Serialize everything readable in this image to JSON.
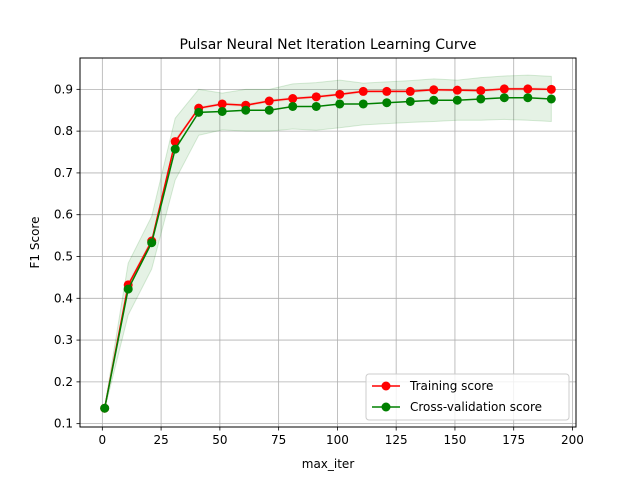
{
  "chart_data": {
    "type": "line",
    "title": "Pulsar Neural Net Iteration Learning Curve",
    "xlabel": "max_iter",
    "ylabel": "F1 Score",
    "xlim": [
      -9.5,
      201.5
    ],
    "ylim": [
      0.092,
      0.975
    ],
    "xticks": [
      0,
      25,
      50,
      75,
      100,
      125,
      150,
      175,
      200
    ],
    "yticks": [
      0.1,
      0.2,
      0.3,
      0.4,
      0.5,
      0.6,
      0.7,
      0.8,
      0.9
    ],
    "grid": true,
    "legend_position": "lower-right",
    "x": [
      1,
      11,
      21,
      31,
      41,
      51,
      61,
      71,
      81,
      91,
      101,
      111,
      121,
      131,
      141,
      151,
      161,
      171,
      181,
      191
    ],
    "series": [
      {
        "name": "Training score",
        "color": "#ff0000",
        "marker": "circle",
        "values": [
          0.137,
          0.432,
          0.537,
          0.775,
          0.855,
          0.865,
          0.862,
          0.872,
          0.878,
          0.882,
          0.888,
          0.895,
          0.895,
          0.895,
          0.899,
          0.898,
          0.897,
          0.901,
          0.901,
          0.9
        ]
      },
      {
        "name": "Cross-validation score",
        "color": "#008000",
        "marker": "circle",
        "values": [
          0.137,
          0.422,
          0.533,
          0.757,
          0.845,
          0.847,
          0.85,
          0.85,
          0.859,
          0.859,
          0.865,
          0.865,
          0.868,
          0.871,
          0.874,
          0.874,
          0.877,
          0.88,
          0.88,
          0.877
        ],
        "band_lower": [
          0.134,
          0.36,
          0.47,
          0.683,
          0.79,
          0.803,
          0.8,
          0.8,
          0.805,
          0.802,
          0.808,
          0.815,
          0.818,
          0.821,
          0.823,
          0.826,
          0.826,
          0.828,
          0.826,
          0.823
        ],
        "band_upper": [
          0.14,
          0.484,
          0.596,
          0.831,
          0.9,
          0.891,
          0.9,
          0.9,
          0.913,
          0.916,
          0.922,
          0.915,
          0.918,
          0.921,
          0.925,
          0.922,
          0.928,
          0.932,
          0.934,
          0.931
        ]
      }
    ],
    "band_color": "#008000",
    "band_opacity": 0.1,
    "training_band_lower": [
      0.134,
      0.425,
      0.53,
      0.768,
      0.851,
      0.861,
      0.858,
      0.868,
      0.874,
      0.878,
      0.884,
      0.891,
      0.891,
      0.891,
      0.895,
      0.894,
      0.893,
      0.897,
      0.897,
      0.896
    ],
    "training_band_upper": [
      0.14,
      0.439,
      0.544,
      0.782,
      0.859,
      0.869,
      0.866,
      0.876,
      0.882,
      0.886,
      0.892,
      0.899,
      0.899,
      0.899,
      0.903,
      0.902,
      0.901,
      0.905,
      0.905,
      0.904
    ]
  }
}
